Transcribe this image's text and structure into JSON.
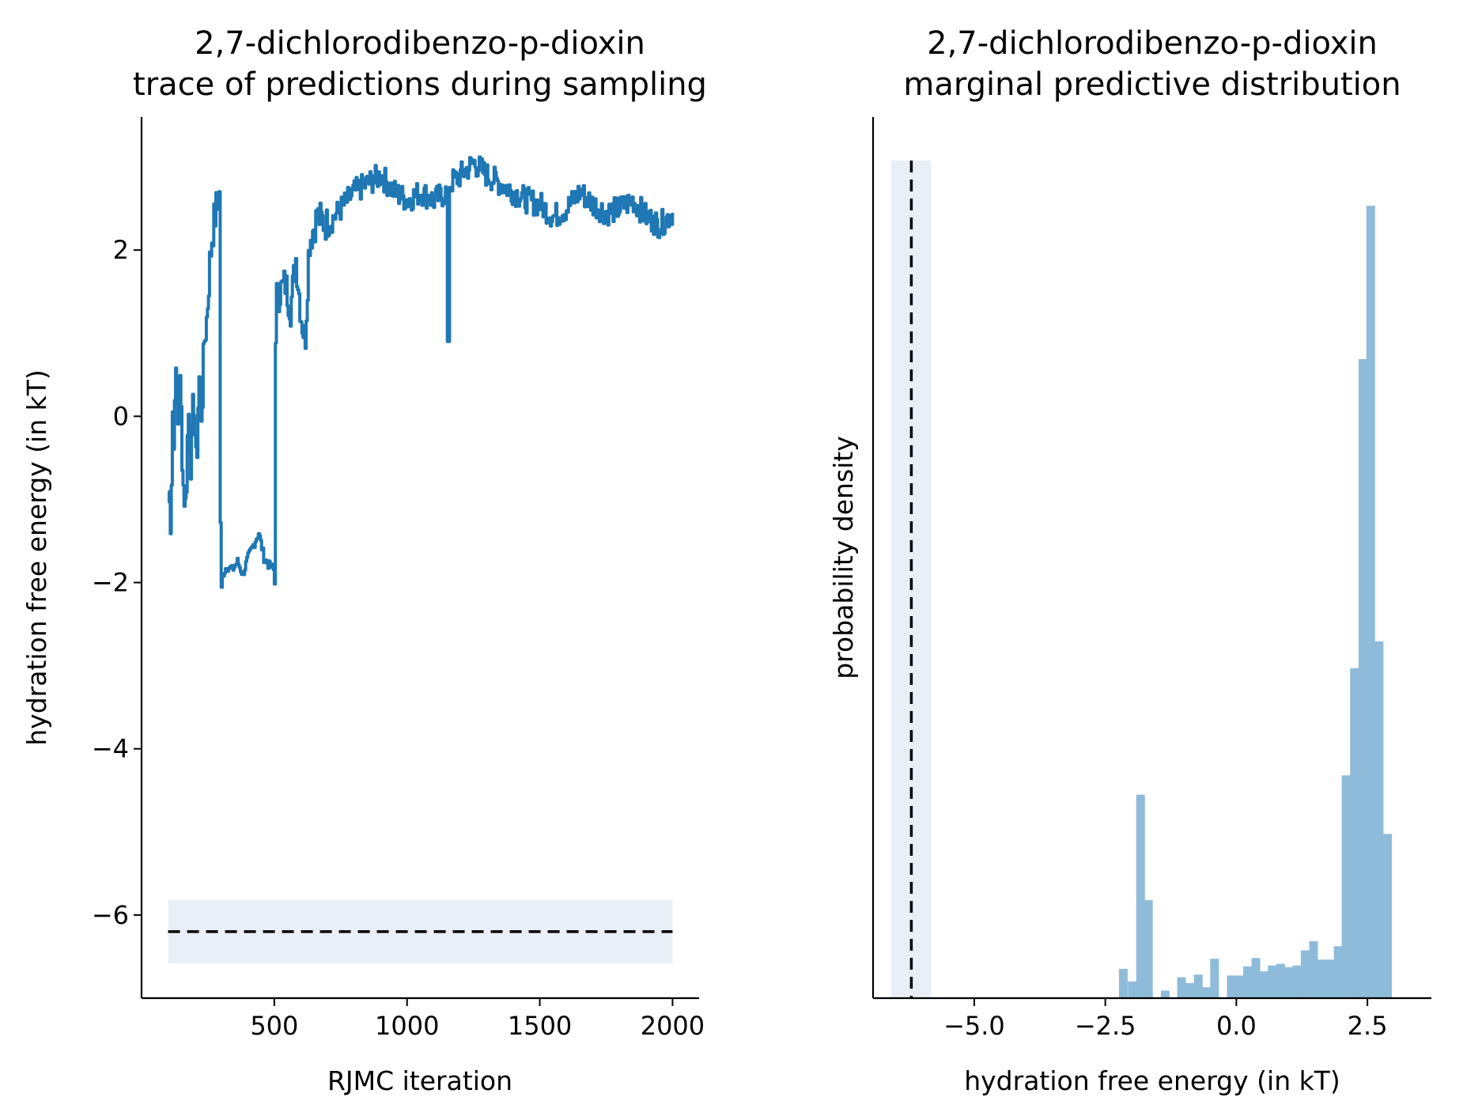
{
  "chart_data": [
    {
      "type": "line",
      "title": "2,7-dichlorodibenzo-p-dioxin\ntrace of predictions during sampling",
      "xlabel": "RJMC iteration",
      "ylabel": "hydration free energy (in kT)",
      "xlim": [
        0,
        2100
      ],
      "ylim": [
        -7.0,
        3.6
      ],
      "xticks": [
        500,
        1000,
        1500,
        2000
      ],
      "yticks": [
        -6,
        -4,
        -2,
        0,
        2
      ],
      "line_color": "#1f77b4",
      "trace": {
        "x_start": 100,
        "x_end": 2000,
        "keypoints": [
          [
            100,
            -0.9
          ],
          [
            110,
            -1.3
          ],
          [
            115,
            0.2
          ],
          [
            120,
            -0.4
          ],
          [
            125,
            0.6
          ],
          [
            135,
            -0.1
          ],
          [
            145,
            0.4
          ],
          [
            155,
            -0.8
          ],
          [
            165,
            -1.1
          ],
          [
            175,
            0.1
          ],
          [
            185,
            -0.6
          ],
          [
            195,
            0.3
          ],
          [
            205,
            -0.7
          ],
          [
            215,
            0.5
          ],
          [
            225,
            0.0
          ],
          [
            235,
            0.9
          ],
          [
            245,
            1.2
          ],
          [
            255,
            1.8
          ],
          [
            265,
            2.2
          ],
          [
            275,
            2.4
          ],
          [
            285,
            2.6
          ],
          [
            292,
            2.65
          ],
          [
            297,
            -2.2
          ],
          [
            305,
            -1.9
          ],
          [
            320,
            -1.8
          ],
          [
            340,
            -1.85
          ],
          [
            360,
            -1.75
          ],
          [
            380,
            -1.9
          ],
          [
            400,
            -1.7
          ],
          [
            420,
            -1.55
          ],
          [
            440,
            -1.4
          ],
          [
            460,
            -1.7
          ],
          [
            480,
            -1.8
          ],
          [
            500,
            -1.85
          ],
          [
            505,
            1.4
          ],
          [
            520,
            1.5
          ],
          [
            540,
            1.6
          ],
          [
            560,
            1.3
          ],
          [
            580,
            1.9
          ],
          [
            600,
            1.2
          ],
          [
            615,
            0.9
          ],
          [
            630,
            2.1
          ],
          [
            660,
            2.4
          ],
          [
            700,
            2.3
          ],
          [
            750,
            2.5
          ],
          [
            800,
            2.7
          ],
          [
            850,
            2.8
          ],
          [
            900,
            2.9
          ],
          [
            950,
            2.7
          ],
          [
            1000,
            2.6
          ],
          [
            1050,
            2.7
          ],
          [
            1100,
            2.6
          ],
          [
            1150,
            2.7
          ],
          [
            1155,
            0.9
          ],
          [
            1160,
            2.8
          ],
          [
            1200,
            2.9
          ],
          [
            1250,
            3.05
          ],
          [
            1300,
            2.9
          ],
          [
            1350,
            2.8
          ],
          [
            1400,
            2.7
          ],
          [
            1450,
            2.6
          ],
          [
            1500,
            2.55
          ],
          [
            1550,
            2.4
          ],
          [
            1600,
            2.5
          ],
          [
            1650,
            2.7
          ],
          [
            1700,
            2.55
          ],
          [
            1750,
            2.45
          ],
          [
            1800,
            2.5
          ],
          [
            1850,
            2.6
          ],
          [
            1900,
            2.4
          ],
          [
            1950,
            2.3
          ],
          [
            2000,
            2.45
          ]
        ]
      },
      "reference": {
        "value": -6.2,
        "band": [
          -6.58,
          -5.82
        ],
        "x_range": [
          100,
          2000
        ],
        "style": "dashed",
        "color": "#000000"
      },
      "band_color": "#e8eff7"
    },
    {
      "type": "histogram",
      "title": "2,7-dichlorodibenzo-p-dioxin\nmarginal predictive distribution",
      "xlabel": "hydration free energy (in kT)",
      "ylabel": "probability density",
      "xlim": [
        -6.93,
        3.72
      ],
      "ylim": [
        0,
        1.0
      ],
      "xticks": [
        -5.0,
        -2.5,
        0.0,
        2.5
      ],
      "xticklabels": [
        "−5.0",
        "−2.5",
        "0.0",
        "2.5"
      ],
      "bar_color": "#8fbbda",
      "bins": [
        [
          -2.24,
          0.035
        ],
        [
          -2.07,
          0.02
        ],
        [
          -1.91,
          0.243
        ],
        [
          -1.76,
          0.117
        ],
        [
          -1.6,
          0.0
        ],
        [
          -1.44,
          0.009
        ],
        [
          -1.28,
          0.0
        ],
        [
          -1.13,
          0.025
        ],
        [
          -0.97,
          0.018
        ],
        [
          -0.81,
          0.028
        ],
        [
          -0.66,
          0.013
        ],
        [
          -0.5,
          0.047
        ],
        [
          -0.34,
          0.0
        ],
        [
          -0.18,
          0.027
        ],
        [
          -0.03,
          0.027
        ],
        [
          0.13,
          0.038
        ],
        [
          0.29,
          0.048
        ],
        [
          0.44,
          0.032
        ],
        [
          0.6,
          0.039
        ],
        [
          0.76,
          0.041
        ],
        [
          0.91,
          0.037
        ],
        [
          1.07,
          0.039
        ],
        [
          1.23,
          0.057
        ],
        [
          1.39,
          0.068
        ],
        [
          1.54,
          0.046
        ],
        [
          1.7,
          0.046
        ],
        [
          1.86,
          0.062
        ],
        [
          2.01,
          0.266
        ],
        [
          2.17,
          0.394
        ],
        [
          2.33,
          0.763
        ],
        [
          2.48,
          0.946
        ],
        [
          2.64,
          0.426
        ],
        [
          2.8,
          0.196
        ]
      ],
      "bin_width": 0.16,
      "reference": {
        "value": -6.2,
        "band": [
          -6.58,
          -5.82
        ],
        "style": "dashed",
        "color": "#000000"
      },
      "band_color": "#e8eff7"
    }
  ]
}
